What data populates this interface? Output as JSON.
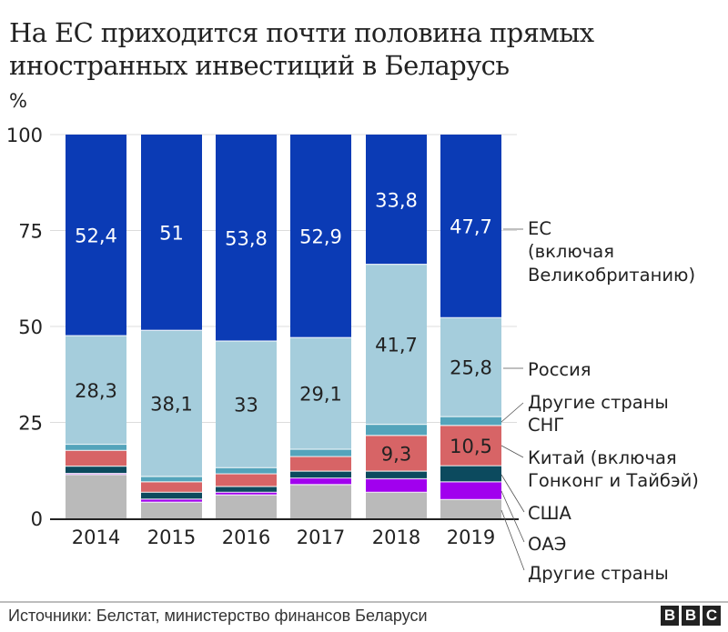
{
  "chart_data": {
    "type": "bar",
    "stacked": true,
    "title": "На ЕС приходится почти половина прямых иностранных инвестиций в Беларусь",
    "ylabel": "%",
    "xlabel": "",
    "ylim": [
      0,
      100
    ],
    "yticks": [
      "0",
      "25",
      "50",
      "75",
      "100"
    ],
    "grid": true,
    "categories": [
      "2014",
      "2015",
      "2016",
      "2017",
      "2018",
      "2019"
    ],
    "series": [
      {
        "name": "Другие страны",
        "color": "#bababa",
        "values": [
          11.4,
          4.2,
          6.1,
          8.8,
          6.8,
          4.9
        ]
      },
      {
        "name": "ОАЭ",
        "color": "#a100ee",
        "values": [
          0.3,
          0.8,
          0.7,
          1.7,
          3.5,
          4.6
        ]
      },
      {
        "name": "США",
        "color": "#0c4a5e",
        "values": [
          1.9,
          1.8,
          1.5,
          1.8,
          2.0,
          4.2
        ]
      },
      {
        "name": "Китай (включая Гонконг и Тайбэй)",
        "color": "#d76466",
        "values": [
          4.1,
          2.7,
          3.3,
          3.8,
          9.3,
          10.5
        ]
      },
      {
        "name": "Другие страны СНГ",
        "color": "#54a4bb",
        "values": [
          1.6,
          1.4,
          1.6,
          1.9,
          2.9,
          2.3
        ]
      },
      {
        "name": "Россия",
        "color": "#a5cddc",
        "values": [
          28.3,
          38.1,
          33,
          29.1,
          41.7,
          25.8
        ]
      },
      {
        "name": "ЕС (включая Великобританию)",
        "color": "#0b3bb5",
        "values": [
          52.4,
          51,
          53.8,
          52.9,
          33.8,
          47.7
        ]
      }
    ],
    "data_labels": {
      "ЕС (включая Великобританию)": [
        "52,4",
        "51",
        "53,8",
        "52,9",
        "33,8",
        "47,7"
      ],
      "Россия": [
        "28,3",
        "38,1",
        "33",
        "29,1",
        "41,7",
        "25,8"
      ],
      "Китай (включая Гонконг и Тайбэй)": [
        "",
        "",
        "",
        "",
        "9,3",
        "10,5"
      ]
    },
    "legend": {
      "placement": "right",
      "entries": [
        {
          "lines": [
            "ЕС",
            "(включая",
            "Великобританию)"
          ]
        },
        {
          "lines": [
            "Россия"
          ]
        },
        {
          "lines": [
            "Другие страны",
            "СНГ"
          ]
        },
        {
          "lines": [
            "Китай (включая",
            "Гонконг и Тайбэй)"
          ]
        },
        {
          "lines": [
            "США"
          ]
        },
        {
          "lines": [
            "ОАЭ"
          ]
        },
        {
          "lines": [
            "Другие страны"
          ]
        }
      ]
    }
  },
  "header": {
    "title": "На ЕС приходится почти половина прямых иностранных инвестиций в Беларусь",
    "unit": "%"
  },
  "footer": {
    "source": "Источники: Белстат, министерство финансов Беларуси",
    "logo": [
      "B",
      "B",
      "C"
    ]
  }
}
